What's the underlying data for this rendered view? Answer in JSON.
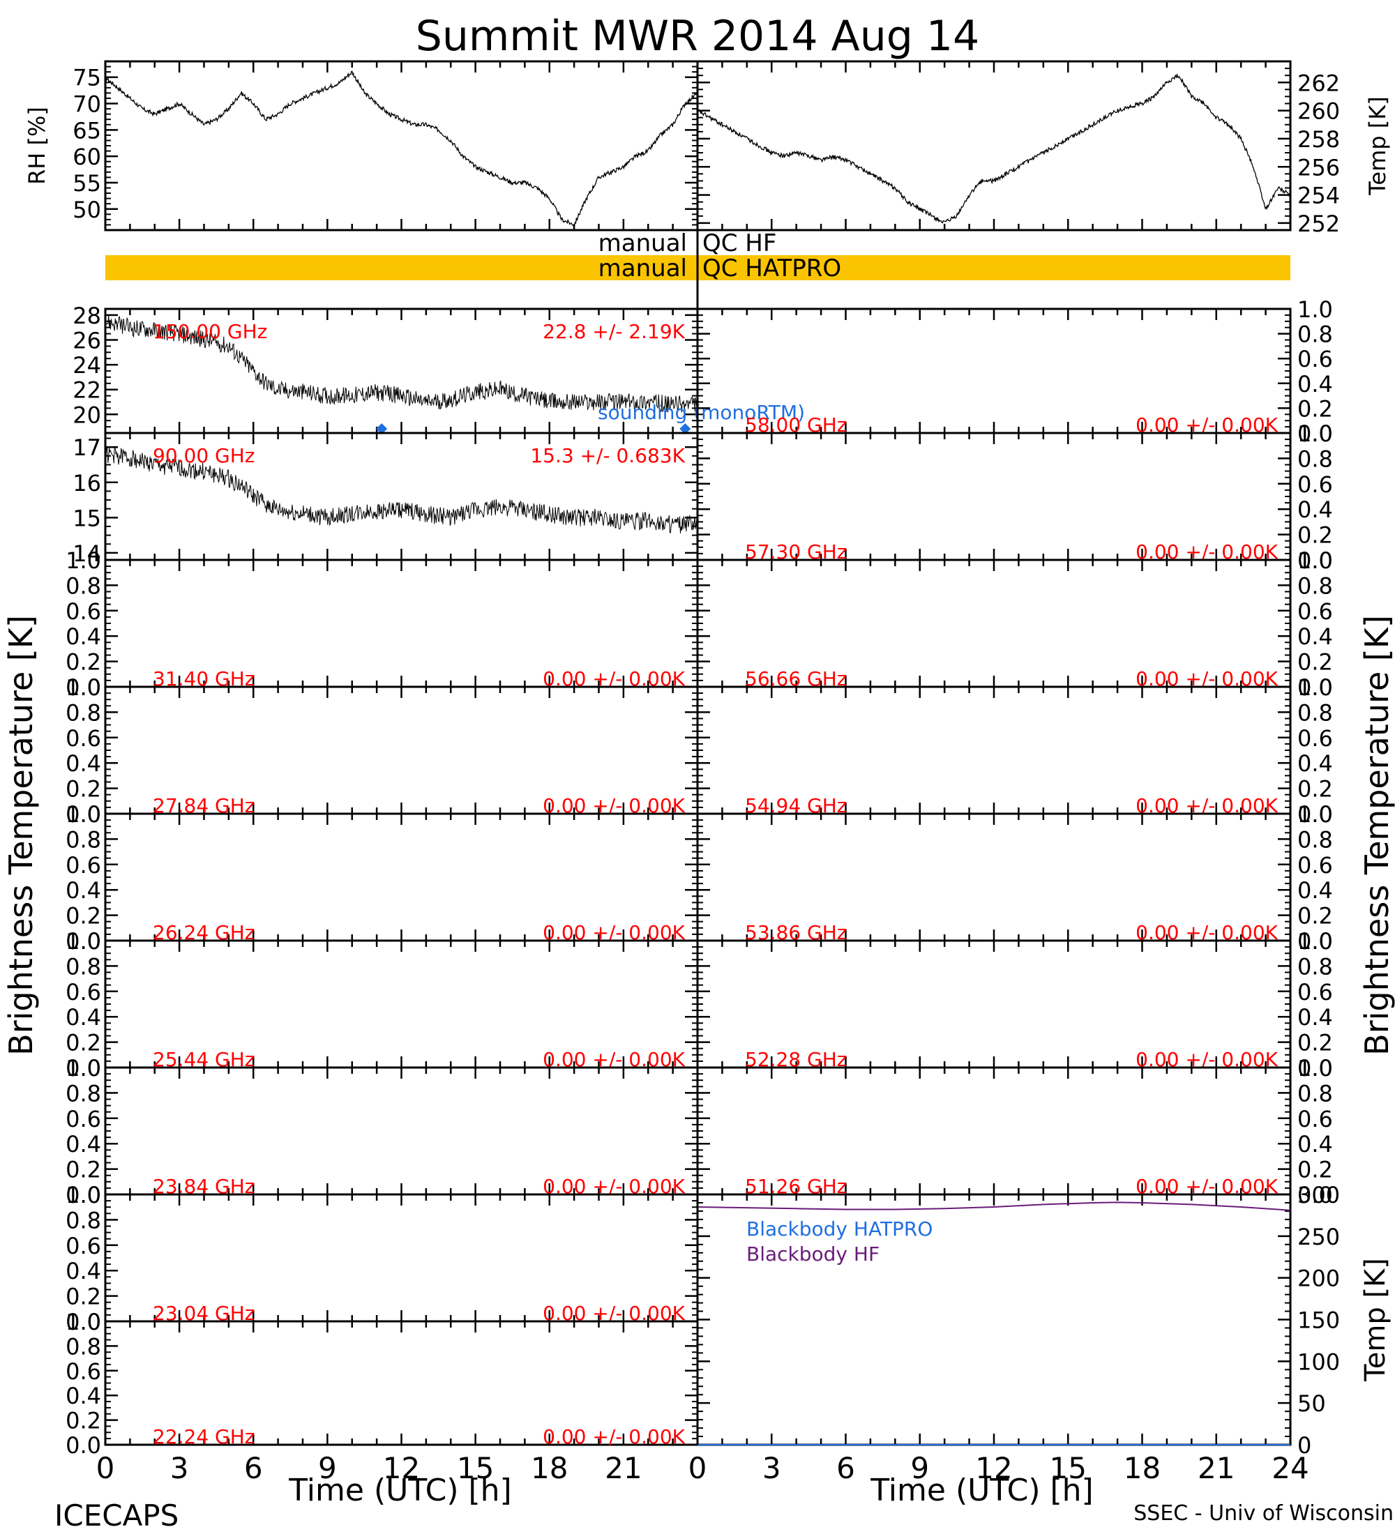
{
  "title": "Summit MWR 2014 Aug 14",
  "footer_left": "ICECAPS",
  "footer_right": "SSEC - Univ of Wisconsin",
  "left_ylabel": "Brightness Temperature [K]",
  "right_ylabel": "Brightness Temperature [K]",
  "colors": {
    "trace": "#000000",
    "channel_label": "#ff0000",
    "sounding": "#1f6fe0",
    "blackbody_hatpro": "#1f6fe0",
    "blackbody_hf": "#6a1b7a",
    "qc_hatpro_bar": "#fbc400"
  },
  "qc": {
    "hf": {
      "left": "manual",
      "right": "QC HF"
    },
    "hatpro": {
      "left": "manual",
      "right": "QC HATPRO"
    }
  },
  "chart_data": [
    {
      "type": "line",
      "panel": "met_rh",
      "ylabel": "RH [%]",
      "ylim": [
        46,
        78
      ],
      "yticks": [
        50,
        55,
        60,
        65,
        70,
        75
      ],
      "xlim": [
        0,
        24
      ],
      "series": [
        {
          "x": [
            0,
            0.5,
            1,
            1.5,
            2,
            2.5,
            3,
            3.5,
            4,
            4.5,
            5,
            5.5,
            6,
            6.5,
            7,
            7.5,
            8,
            8.5,
            9,
            9.5,
            10,
            10.5,
            11,
            11.5,
            12,
            12.5,
            13,
            13.5,
            14,
            14.5,
            15,
            15.5,
            16,
            16.5,
            17,
            17.5,
            18,
            18.5,
            19,
            19.5,
            20,
            20.5,
            21,
            21.5,
            22,
            22.5,
            23,
            23.5,
            24
          ],
          "y": [
            75,
            73,
            71,
            69,
            68,
            69,
            70,
            68,
            66,
            67,
            69,
            72,
            70,
            67,
            68,
            70,
            71,
            72,
            73,
            74,
            76,
            72,
            70,
            68,
            67,
            66,
            66,
            65,
            63,
            60,
            58,
            57,
            56,
            55,
            55,
            54,
            52,
            48,
            47,
            52,
            56,
            57,
            58,
            60,
            61,
            64,
            66,
            70,
            72
          ]
        }
      ]
    },
    {
      "type": "line",
      "panel": "met_temp",
      "ylabel": "Temp [K]",
      "ylim": [
        251.5,
        263.5
      ],
      "yticks": [
        252,
        254,
        256,
        258,
        260,
        262
      ],
      "xlim": [
        0,
        24
      ],
      "series": [
        {
          "x": [
            0,
            0.5,
            1,
            1.5,
            2,
            2.5,
            3,
            3.5,
            4,
            4.5,
            5,
            5.5,
            6,
            6.5,
            7,
            7.5,
            8,
            8.5,
            9,
            9.5,
            10,
            10.5,
            11,
            11.5,
            12,
            12.5,
            13,
            13.5,
            14,
            14.5,
            15,
            15.5,
            16,
            16.5,
            17,
            17.5,
            18,
            18.5,
            19,
            19.5,
            20,
            20.5,
            21,
            21.5,
            22,
            22.5,
            23,
            23.5,
            24
          ],
          "y": [
            260,
            259.5,
            259,
            258.5,
            258,
            257.5,
            257,
            256.8,
            257,
            256.8,
            256.5,
            256.7,
            256.5,
            256,
            255.5,
            255,
            254.5,
            253.5,
            253,
            252.5,
            252,
            252.5,
            254,
            255,
            255,
            255.5,
            256,
            256.5,
            257,
            257.5,
            258,
            258.5,
            259,
            259.5,
            260,
            260.3,
            260.5,
            261,
            262,
            262.5,
            261,
            260.5,
            259.5,
            259,
            258,
            256,
            253,
            254.5,
            254
          ]
        }
      ]
    },
    {
      "type": "line",
      "panel": "tb_left_1",
      "channel": "150.00 GHz",
      "stats": "22.8 +/- 2.19K",
      "ylim": [
        18.5,
        28.5
      ],
      "yticks": [
        20,
        22,
        24,
        26,
        28
      ],
      "xlim": [
        0,
        24
      ],
      "series": [
        {
          "x": [
            0,
            1,
            2,
            3,
            4,
            5,
            5.5,
            6,
            6.5,
            7,
            8,
            9,
            10,
            11,
            12,
            13,
            14,
            15,
            16,
            17,
            18,
            19,
            20,
            21,
            22,
            23,
            24
          ],
          "y": [
            27.5,
            27,
            26.8,
            26.5,
            26,
            25.5,
            24.5,
            23.5,
            22.5,
            22,
            21.8,
            21.5,
            21.5,
            21.8,
            21.5,
            21,
            21.2,
            21.8,
            22,
            21.5,
            21,
            21,
            21,
            21,
            21,
            20.8,
            20.8
          ]
        }
      ],
      "sounding_label": "sounding (monoRTM)",
      "sounding": [
        {
          "x": 11.2,
          "y": 18.5
        },
        {
          "x": 23.5,
          "y": 18.5
        }
      ]
    },
    {
      "type": "line",
      "panel": "tb_left_2",
      "channel": "90.00 GHz",
      "stats": "15.3 +/- 0.683K",
      "ylim": [
        13.8,
        17.4
      ],
      "yticks": [
        14,
        15,
        16,
        17
      ],
      "xlim": [
        0,
        24
      ],
      "series": [
        {
          "x": [
            0,
            1,
            2,
            3,
            4,
            5,
            5.5,
            6,
            6.5,
            7,
            8,
            9,
            10,
            11,
            12,
            13,
            14,
            15,
            16,
            17,
            18,
            19,
            20,
            21,
            22,
            23,
            24
          ],
          "y": [
            16.8,
            16.7,
            16.5,
            16.4,
            16.3,
            16.1,
            15.9,
            15.6,
            15.4,
            15.2,
            15.1,
            15,
            15.1,
            15.2,
            15.2,
            15.1,
            15,
            15.2,
            15.3,
            15.2,
            15.1,
            15,
            15,
            14.9,
            14.9,
            14.8,
            14.8
          ]
        }
      ]
    },
    {
      "type": "line",
      "panel": "tb_left_3",
      "channel": "31.40 GHz",
      "stats": "0.00 +/- 0.00K",
      "ylim": [
        0,
        1
      ],
      "xlim": [
        0,
        24
      ],
      "series": []
    },
    {
      "type": "line",
      "panel": "tb_left_4",
      "channel": "27.84 GHz",
      "stats": "0.00 +/- 0.00K",
      "ylim": [
        0,
        1
      ],
      "xlim": [
        0,
        24
      ],
      "series": []
    },
    {
      "type": "line",
      "panel": "tb_left_5",
      "channel": "26.24 GHz",
      "stats": "0.00 +/- 0.00K",
      "ylim": [
        0,
        1
      ],
      "xlim": [
        0,
        24
      ],
      "series": []
    },
    {
      "type": "line",
      "panel": "tb_left_6",
      "channel": "25.44 GHz",
      "stats": "0.00 +/- 0.00K",
      "ylim": [
        0,
        1
      ],
      "xlim": [
        0,
        24
      ],
      "series": []
    },
    {
      "type": "line",
      "panel": "tb_left_7",
      "channel": "23.84 GHz",
      "stats": "0.00 +/- 0.00K",
      "ylim": [
        0,
        1
      ],
      "xlim": [
        0,
        24
      ],
      "series": []
    },
    {
      "type": "line",
      "panel": "tb_left_8",
      "channel": "23.04 GHz",
      "stats": "0.00 +/- 0.00K",
      "ylim": [
        0,
        1
      ],
      "xlim": [
        0,
        24
      ],
      "series": []
    },
    {
      "type": "line",
      "panel": "tb_left_9",
      "channel": "22.24 GHz",
      "stats": "0.00 +/- 0.00K",
      "ylim": [
        0,
        1
      ],
      "xlim": [
        0,
        24
      ],
      "series": []
    },
    {
      "type": "line",
      "panel": "tb_right_1",
      "channel": "58.00 GHz",
      "stats": "0.00 +/- 0.00K",
      "ylim": [
        0,
        1
      ],
      "xlim": [
        0,
        24
      ],
      "series": []
    },
    {
      "type": "line",
      "panel": "tb_right_2",
      "channel": "57.30 GHz",
      "stats": "0.00 +/- 0.00K",
      "ylim": [
        0,
        1
      ],
      "xlim": [
        0,
        24
      ],
      "series": []
    },
    {
      "type": "line",
      "panel": "tb_right_3",
      "channel": "56.66 GHz",
      "stats": "0.00 +/- 0.00K",
      "ylim": [
        0,
        1
      ],
      "xlim": [
        0,
        24
      ],
      "series": []
    },
    {
      "type": "line",
      "panel": "tb_right_4",
      "channel": "54.94 GHz",
      "stats": "0.00 +/- 0.00K",
      "ylim": [
        0,
        1
      ],
      "xlim": [
        0,
        24
      ],
      "series": []
    },
    {
      "type": "line",
      "panel": "tb_right_5",
      "channel": "53.86 GHz",
      "stats": "0.00 +/- 0.00K",
      "ylim": [
        0,
        1
      ],
      "xlim": [
        0,
        24
      ],
      "series": []
    },
    {
      "type": "line",
      "panel": "tb_right_6",
      "channel": "52.28 GHz",
      "stats": "0.00 +/- 0.00K",
      "ylim": [
        0,
        1
      ],
      "xlim": [
        0,
        24
      ],
      "series": []
    },
    {
      "type": "line",
      "panel": "tb_right_7",
      "channel": "51.26 GHz",
      "stats": "0.00 +/- 0.00K",
      "ylim": [
        0,
        1
      ],
      "xlim": [
        0,
        24
      ],
      "series": []
    },
    {
      "type": "line",
      "panel": "blackbody",
      "ylabel": "Temp [K]",
      "ylim": [
        0,
        300
      ],
      "yticks": [
        0,
        50,
        100,
        150,
        200,
        250,
        300
      ],
      "xlim": [
        0,
        24
      ],
      "xticks": [
        0,
        3,
        6,
        9,
        12,
        15,
        18,
        21,
        24
      ],
      "xlabel": "Time (UTC) [h]",
      "series": [
        {
          "name": "Blackbody HATPRO",
          "x": [
            0,
            24
          ],
          "y": [
            0,
            0
          ]
        },
        {
          "name": "Blackbody HF",
          "x": [
            0,
            2,
            4,
            6,
            8,
            10,
            12,
            14,
            16,
            17,
            18,
            20,
            22,
            24
          ],
          "y": [
            285,
            284,
            283,
            282,
            282,
            283,
            285,
            288,
            290,
            290.5,
            290,
            288,
            285,
            281
          ]
        }
      ]
    },
    {
      "type": "line",
      "panel": "bottom_left_xaxis",
      "xlim": [
        0,
        24
      ],
      "xticks": [
        0,
        3,
        6,
        9,
        12,
        15,
        18,
        21
      ],
      "xlabel": "Time (UTC) [h]"
    }
  ]
}
